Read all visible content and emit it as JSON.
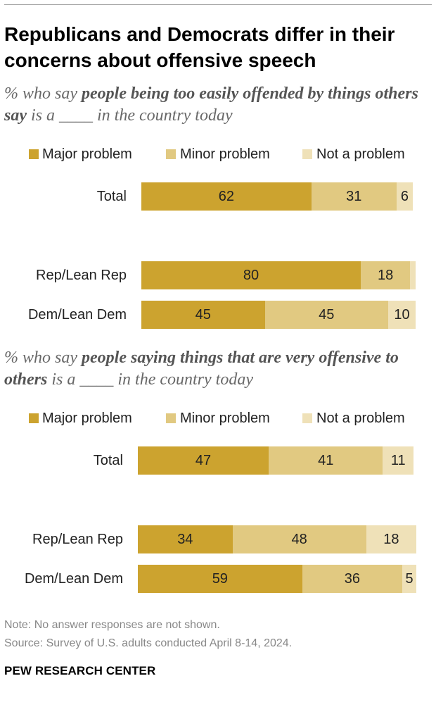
{
  "title": "Republicans and Democrats differ in their concerns about offensive speech",
  "colors": {
    "major": "#cca32f",
    "minor": "#e1c981",
    "not": "#efe1b8"
  },
  "legend": {
    "major": "Major problem",
    "minor": "Minor problem",
    "not": "Not a problem"
  },
  "panels": [
    {
      "subtitle_pre": "% who say ",
      "subtitle_bold": "people being too easily offended by things others say",
      "subtitle_post": " is a ____ in the country today"
    },
    {
      "subtitle_pre": "% who say ",
      "subtitle_bold": "people saying things that are very offensive to others",
      "subtitle_post": " is a ____ in the country today"
    }
  ],
  "chart_data": [
    {
      "type": "bar",
      "orientation": "horizontal-stacked",
      "categories": [
        "Total",
        "Rep/Lean Rep",
        "Dem/Lean Dem"
      ],
      "series": [
        {
          "name": "Major problem",
          "values": [
            62,
            80,
            45
          ],
          "labels": [
            "62",
            "80",
            "45"
          ]
        },
        {
          "name": "Minor problem",
          "values": [
            31,
            18,
            45
          ],
          "labels": [
            "31",
            "18",
            "45"
          ]
        },
        {
          "name": "Not a problem",
          "values": [
            6,
            2,
            10
          ],
          "labels": [
            "6",
            "",
            "10"
          ]
        }
      ],
      "legend": "top"
    },
    {
      "type": "bar",
      "orientation": "horizontal-stacked",
      "categories": [
        "Total",
        "Rep/Lean Rep",
        "Dem/Lean Dem"
      ],
      "series": [
        {
          "name": "Major problem",
          "values": [
            47,
            34,
            59
          ],
          "labels": [
            "47",
            "34",
            "59"
          ]
        },
        {
          "name": "Minor problem",
          "values": [
            41,
            48,
            36
          ],
          "labels": [
            "41",
            "48",
            "36"
          ]
        },
        {
          "name": "Not a problem",
          "values": [
            11,
            18,
            5
          ],
          "labels": [
            "11",
            "18",
            "5"
          ]
        }
      ],
      "legend": "top"
    }
  ],
  "footer": {
    "note": "Note: No answer responses are not shown.",
    "source": "Source: Survey of U.S. adults conducted April 8-14, 2024.",
    "brand": "PEW RESEARCH CENTER"
  }
}
